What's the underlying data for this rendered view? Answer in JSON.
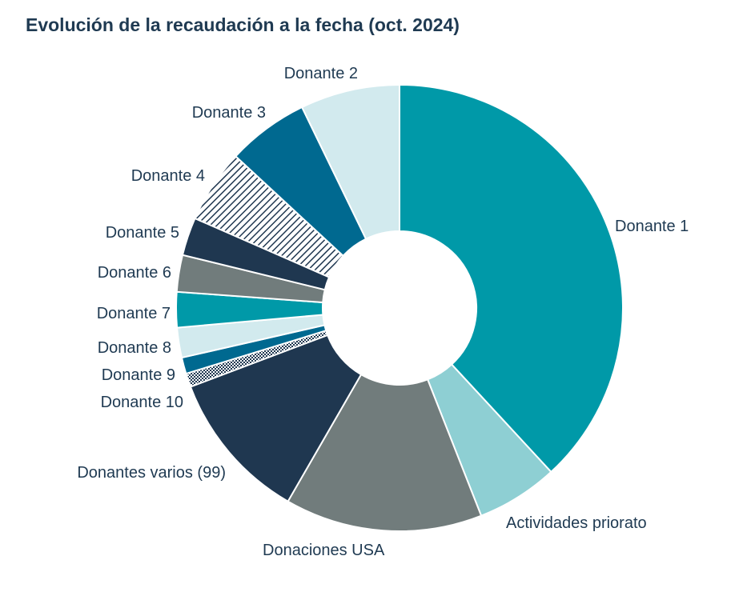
{
  "chart_data": {
    "type": "pie",
    "title": "Evolución de la recaudación a la fecha (oct. 2024)",
    "donut": true,
    "slices": [
      {
        "label": "Donante 1",
        "value": 38.7,
        "color": "#0099a8"
      },
      {
        "label": "Actividades priorato",
        "value": 6.0,
        "color": "#8ecfd3"
      },
      {
        "label": "Donaciones USA",
        "value": 14.5,
        "color": "#717c7c"
      },
      {
        "label": "Donantes varios (99)",
        "value": 11.1,
        "color": "#1f3750"
      },
      {
        "label": "Donante 10",
        "value": 1.0,
        "color": "#1f3750",
        "pattern": "dots"
      },
      {
        "label": "Donante 9",
        "value": 1.2,
        "color": "#006990"
      },
      {
        "label": "Donante 8",
        "value": 2.2,
        "color": "#d2eaee"
      },
      {
        "label": "Donante 7",
        "value": 2.6,
        "color": "#0099a8"
      },
      {
        "label": "Donante 6",
        "value": 2.7,
        "color": "#717c7c"
      },
      {
        "label": "Donante 5",
        "value": 2.8,
        "color": "#1f3750"
      },
      {
        "label": "Donante 4",
        "value": 5.4,
        "color": "#1f3750",
        "pattern": "hatch"
      },
      {
        "label": "Donante 3",
        "value": 6.0,
        "color": "#006990"
      },
      {
        "label": "Donante 2",
        "value": 7.3,
        "color": "#d2eaee"
      }
    ],
    "legend": "none"
  }
}
